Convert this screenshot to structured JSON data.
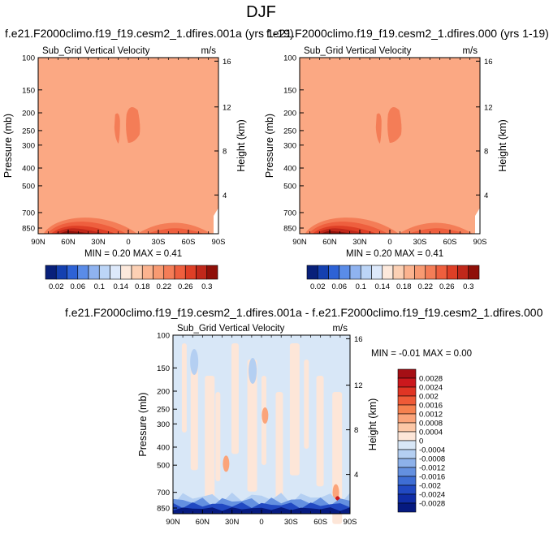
{
  "main_title": "DJF",
  "chart_data": [
    {
      "type": "heatmap",
      "title": "f.e21.F2000climo.f19_f19.cesm2_1.dfires.001a (yrs 1-19)",
      "subtitle": "Sub_Grid Vertical Velocity",
      "units": "m/s",
      "ylabel": "Pressure (mb)",
      "ylabel_right": "Height (km)",
      "x_ticks": [
        "90N",
        "60N",
        "30N",
        "0",
        "30S",
        "60S",
        "90S"
      ],
      "y_ticks": [
        "100",
        "150",
        "200",
        "250",
        "300",
        "400",
        "500",
        "700",
        "850"
      ],
      "y_right_ticks": [
        "16",
        "12",
        "8",
        "4"
      ],
      "y_scale": "log",
      "y_reversed": true,
      "min_label": "MIN =  0.20  MAX =  0.41",
      "min": 0.2,
      "max": 0.41,
      "colorbar_labels": [
        "0.02",
        "0.06",
        "0.1",
        "0.14",
        "0.18",
        "0.22",
        "0.26",
        "0.3"
      ],
      "colorbar_colors": [
        "#08207a",
        "#1440b0",
        "#2d62d6",
        "#5a8ce8",
        "#8fb3f0",
        "#bcd5f7",
        "#dde9fb",
        "#fde9dc",
        "#fcd0b4",
        "#fbb38f",
        "#f89a72",
        "#f47d57",
        "#ee5f3e",
        "#de3f26",
        "#c0281a",
        "#8f1009"
      ]
    },
    {
      "type": "heatmap",
      "title": "f.e21.F2000climo.f19_f19.cesm2_1.dfires.000 (yrs 1-19)",
      "subtitle": "Sub_Grid Vertical Velocity",
      "units": "m/s",
      "ylabel": "Pressure (mb)",
      "ylabel_right": "Height (km)",
      "x_ticks": [
        "90N",
        "60N",
        "30N",
        "0",
        "30S",
        "60S",
        "90S"
      ],
      "y_ticks": [
        "100",
        "150",
        "200",
        "250",
        "300",
        "400",
        "500",
        "700",
        "850"
      ],
      "y_right_ticks": [
        "16",
        "12",
        "8",
        "4"
      ],
      "y_scale": "log",
      "y_reversed": true,
      "min_label": "MIN =  0.20  MAX =  0.41",
      "min": 0.2,
      "max": 0.41,
      "colorbar_labels": [
        "0.02",
        "0.06",
        "0.1",
        "0.14",
        "0.18",
        "0.22",
        "0.26",
        "0.3"
      ],
      "colorbar_colors": [
        "#08207a",
        "#1440b0",
        "#2d62d6",
        "#5a8ce8",
        "#8fb3f0",
        "#bcd5f7",
        "#dde9fb",
        "#fde9dc",
        "#fcd0b4",
        "#fbb38f",
        "#f89a72",
        "#f47d57",
        "#ee5f3e",
        "#de3f26",
        "#c0281a",
        "#8f1009"
      ]
    },
    {
      "type": "heatmap",
      "title": "f.e21.F2000climo.f19_f19.cesm2_1.dfires.001a - f.e21.F2000climo.f19_f19.cesm2_1.dfires.000",
      "subtitle": "Sub_Grid Vertical Velocity",
      "units": "m/s",
      "ylabel": "Pressure (mb)",
      "ylabel_right": "Height (km)",
      "x_ticks": [
        "90N",
        "60N",
        "30N",
        "0",
        "30S",
        "60S",
        "90S"
      ],
      "y_ticks": [
        "100",
        "150",
        "200",
        "250",
        "300",
        "400",
        "500",
        "700",
        "850"
      ],
      "y_right_ticks": [
        "16",
        "12",
        "8",
        "4"
      ],
      "y_scale": "log",
      "y_reversed": true,
      "min_label": "MIN = -0.01  MAX =  0.00",
      "min": -0.01,
      "max": 0.0,
      "colorbar_labels": [
        "0.0028",
        "0.0024",
        "0.002",
        "0.0016",
        "0.0012",
        "0.0008",
        "0.0004",
        "0",
        "-0.0004",
        "-0.0008",
        "-0.0012",
        "-0.0016",
        "-0.002",
        "-0.0024",
        "-0.0028"
      ],
      "colorbar_colors": [
        "#a50f15",
        "#cb181d",
        "#e03524",
        "#ef5a37",
        "#f6814f",
        "#fba47a",
        "#fcc7a6",
        "#fde6d8",
        "#d8e7f7",
        "#b4cff2",
        "#8db1ea",
        "#6490e0",
        "#3e6dd4",
        "#2149c2",
        "#102da6",
        "#061a80"
      ]
    }
  ]
}
